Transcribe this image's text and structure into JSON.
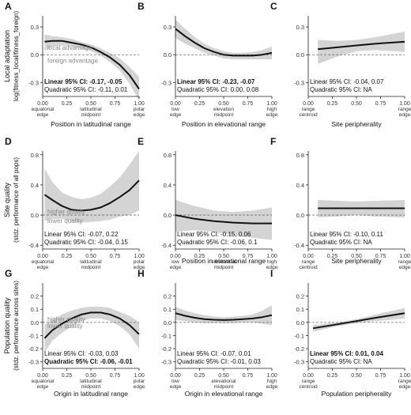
{
  "figure": {
    "row_ylabels": [
      [
        "Local adaptation",
        "log(fitness_local/fitness_foreign)"
      ],
      [
        "Site quality",
        "(stdz. performance of all pops)"
      ],
      [
        "Population quality",
        "(stdz. performance across sites)"
      ]
    ]
  },
  "chart_data": [
    {
      "panel": "A",
      "type": "line",
      "xlabel": "Position in latitudinal range",
      "xlim": [
        0,
        1
      ],
      "ylim": [
        -0.45,
        0.42
      ],
      "yticks": [
        "0.3",
        "0.0",
        "-0.3"
      ],
      "ytick_values": [
        0.3,
        0,
        -0.3
      ],
      "xticks": [
        "0.00\nequatorial\nedge",
        "0.25",
        "0.50\nlatitudinal\nmidpoint",
        "0.75",
        "1.00\npolar\nedge"
      ],
      "ref_labels": [
        {
          "text": "local advantage",
          "y": 0.08
        },
        {
          "text": "foreign advantage",
          "y": -0.06
        }
      ],
      "x": [
        0.02,
        0.1,
        0.2,
        0.3,
        0.4,
        0.5,
        0.6,
        0.7,
        0.8,
        0.9,
        1.0
      ],
      "y": [
        0.14,
        0.15,
        0.15,
        0.13,
        0.11,
        0.08,
        0.03,
        -0.03,
        -0.11,
        -0.22,
        -0.37
      ],
      "ci_upper": [
        0.22,
        0.2,
        0.19,
        0.17,
        0.14,
        0.11,
        0.07,
        0.02,
        -0.04,
        -0.13,
        -0.24
      ],
      "ci_lower": [
        0.04,
        0.09,
        0.1,
        0.09,
        0.07,
        0.04,
        -0.01,
        -0.08,
        -0.17,
        -0.31,
        -0.5
      ],
      "stats": [
        {
          "text": "Linear 95% CI: -0.17, -0.05",
          "bold": true
        },
        {
          "text": "Quadratic 95% CI: -0.11, 0.01",
          "bold": false
        }
      ]
    },
    {
      "panel": "B",
      "type": "line",
      "xlabel": "Position in elevational range",
      "xlim": [
        0,
        1
      ],
      "ylim": [
        -0.45,
        0.42
      ],
      "yticks": [
        "0.3",
        "0.0",
        "-0.3"
      ],
      "ytick_values": [
        0.3,
        0,
        -0.3
      ],
      "xticks": [
        "0.00\nlow\nedge",
        "0.25",
        "0.50\nelevation\nmidpoint",
        "0.75",
        "1.00\nhigh\nedge"
      ],
      "ref_labels": [],
      "x": [
        0.0,
        0.1,
        0.2,
        0.3,
        0.4,
        0.5,
        0.6,
        0.7,
        0.8,
        0.9,
        1.0
      ],
      "y": [
        0.28,
        0.2,
        0.13,
        0.07,
        0.03,
        0.0,
        -0.01,
        -0.01,
        -0.01,
        0.0,
        0.02
      ],
      "ci_upper": [
        0.38,
        0.28,
        0.19,
        0.12,
        0.07,
        0.04,
        0.02,
        0.02,
        0.03,
        0.05,
        0.09
      ],
      "ci_lower": [
        0.18,
        0.12,
        0.07,
        0.02,
        -0.01,
        -0.04,
        -0.05,
        -0.05,
        -0.05,
        -0.05,
        -0.05
      ],
      "stats": [
        {
          "text": "Linear 95% CI: -0.23, -0.07",
          "bold": true
        },
        {
          "text": "Quadratic 95% CI: 0.00, 0.08",
          "bold": false
        }
      ]
    },
    {
      "panel": "C",
      "type": "line",
      "xlabel": "Site peripherality",
      "xlim": [
        0,
        1
      ],
      "ylim": [
        -0.45,
        0.42
      ],
      "yticks": [
        "0.3",
        "0.0",
        "-0.3"
      ],
      "ytick_values": [
        0.3,
        0,
        -0.3
      ],
      "xticks": [
        "0.00\nrange\ncentroid",
        "0.25",
        "0.50",
        "0.75",
        "1.00\nrange\nedge"
      ],
      "ref_labels": [],
      "x": [
        0.1,
        0.3,
        0.5,
        0.7,
        1.0
      ],
      "y": [
        0.06,
        0.08,
        0.1,
        0.12,
        0.14
      ],
      "ci_upper": [
        0.16,
        0.15,
        0.16,
        0.19,
        0.25
      ],
      "ci_lower": [
        -0.1,
        -0.02,
        0.04,
        0.05,
        0.03
      ],
      "stats": [
        {
          "text": "Linear 95% CI: -0.04, 0.07",
          "bold": false
        },
        {
          "text": "Quadratic 95% CI: NA",
          "bold": false
        }
      ]
    },
    {
      "panel": "D",
      "type": "line",
      "xlabel": "",
      "xlim": [
        0,
        1
      ],
      "ylim": [
        -0.45,
        0.85
      ],
      "yticks": [
        "0.8",
        "0.4",
        "0.0",
        "-0.4"
      ],
      "ytick_values": [
        0.8,
        0.4,
        0,
        -0.4
      ],
      "xticks": [
        "0.00\nequatorial\nedge",
        "0.25",
        "0.50\nlatitudinal\nmidpoint",
        "0.75",
        "1.00\npolar\nedge"
      ],
      "ref_labels": [
        {
          "text": "higher quality",
          "y": 0.05
        },
        {
          "text": "lower quality",
          "y": -0.07
        }
      ],
      "x": [
        0.02,
        0.1,
        0.2,
        0.3,
        0.4,
        0.5,
        0.6,
        0.7,
        0.8,
        0.9,
        1.0
      ],
      "y": [
        0.27,
        0.2,
        0.12,
        0.07,
        0.06,
        0.07,
        0.1,
        0.16,
        0.24,
        0.33,
        0.46
      ],
      "ci_upper": [
        0.62,
        0.44,
        0.3,
        0.24,
        0.21,
        0.23,
        0.28,
        0.38,
        0.5,
        0.67,
        0.85
      ],
      "ci_lower": [
        -0.08,
        -0.05,
        -0.05,
        -0.08,
        -0.1,
        -0.09,
        -0.08,
        -0.06,
        -0.02,
        0.0,
        0.06
      ],
      "stats": [
        {
          "text": "Linear 95% CI: -0.07, 0.22",
          "bold": false
        },
        {
          "text": "Quadratic 95% CI: -0.04, 0.15",
          "bold": false
        }
      ]
    },
    {
      "panel": "E",
      "type": "line",
      "xlabel": "Position in elevational range",
      "xlim": [
        0,
        1
      ],
      "ylim": [
        -0.45,
        0.85
      ],
      "yticks": [
        "0.8",
        "0.4",
        "0.0",
        "-0.4"
      ],
      "ytick_values": [
        0.8,
        0.4,
        0,
        -0.4
      ],
      "xticks": [
        "0.00\nlow\nedge",
        "0.25",
        "0.50\nelevational\nmidpoint",
        "0.75",
        "1.00\nhigh\nedge"
      ],
      "ref_labels": [],
      "x": [
        0.0,
        0.2,
        0.4,
        0.6,
        0.8,
        1.0
      ],
      "y": [
        0.0,
        -0.05,
        -0.08,
        -0.1,
        -0.11,
        -0.11
      ],
      "ci_upper": [
        0.2,
        0.12,
        0.06,
        0.04,
        0.06,
        0.1
      ],
      "ci_lower": [
        -0.22,
        -0.2,
        -0.22,
        -0.27,
        -0.3,
        -0.33
      ],
      "stats": [
        {
          "text": "Linear 95% CI: -0.15, 0.06",
          "bold": false
        },
        {
          "text": "Quadratic 95% CI: -0.06, 0.1",
          "bold": false
        }
      ]
    },
    {
      "panel": "F",
      "type": "line",
      "xlabel": "Site peripherality",
      "xlim": [
        0,
        1
      ],
      "ylim": [
        -0.45,
        0.85
      ],
      "yticks": [
        "0.8",
        "0.4",
        "0.0",
        "-0.4"
      ],
      "ytick_values": [
        0.8,
        0.4,
        0,
        -0.4
      ],
      "xticks": [
        "0.00\nrange\ncentroid",
        "0.25",
        "0.50",
        "0.75",
        "1.00\nrange\nedge"
      ],
      "ref_labels": [],
      "x": [
        0.1,
        0.3,
        0.5,
        0.7,
        1.0
      ],
      "y": [
        0.09,
        0.09,
        0.09,
        0.09,
        0.09
      ],
      "ci_upper": [
        0.2,
        0.19,
        0.18,
        0.19,
        0.2
      ],
      "ci_lower": [
        -0.03,
        -0.02,
        0.0,
        -0.02,
        -0.03
      ],
      "stats": [
        {
          "text": "Linear 95% CI: -0.10, 0.11",
          "bold": false
        },
        {
          "text": "Quadratic 95% CI: NA",
          "bold": false
        }
      ]
    },
    {
      "panel": "G",
      "type": "line",
      "xlabel": "Origin in latitudinal range",
      "xlim": [
        0,
        1
      ],
      "ylim": [
        -0.35,
        0.3
      ],
      "yticks": [
        "0.2",
        "0.1",
        "0.0",
        "-0.1",
        "-0.2",
        "-0.3"
      ],
      "ytick_values": [
        0.2,
        0.1,
        0,
        -0.1,
        -0.2,
        -0.3
      ],
      "xticks": [
        "0.00\nequatorial\nedge",
        "0.25",
        "0.50\nlatitudinal\nmidpoint",
        "0.75",
        "1.00\npolar\nedge"
      ],
      "ref_labels": [
        {
          "text": "higher quality",
          "y": 0.025
        },
        {
          "text": "lower quality",
          "y": -0.025
        }
      ],
      "x": [
        0.02,
        0.1,
        0.2,
        0.3,
        0.4,
        0.5,
        0.6,
        0.7,
        0.8,
        0.9,
        1.0
      ],
      "y": [
        -0.12,
        -0.06,
        -0.01,
        0.03,
        0.06,
        0.075,
        0.075,
        0.06,
        0.03,
        -0.02,
        -0.09
      ],
      "ci_upper": [
        -0.02,
        0.02,
        0.06,
        0.09,
        0.11,
        0.12,
        0.12,
        0.11,
        0.08,
        0.05,
        0.0
      ],
      "ci_lower": [
        -0.23,
        -0.14,
        -0.08,
        -0.03,
        0.01,
        0.03,
        0.03,
        0.01,
        -0.03,
        -0.09,
        -0.2
      ],
      "stats": [
        {
          "text": "Linear 95% CI: -0.03, 0.03",
          "bold": false
        },
        {
          "text": "Quadratic 95% CI: -0.06, -0.01",
          "bold": true
        }
      ]
    },
    {
      "panel": "H",
      "type": "line",
      "xlabel": "Origin in elevational range",
      "xlim": [
        0,
        1
      ],
      "ylim": [
        -0.35,
        0.3
      ],
      "yticks": [
        "0.2",
        "0.1",
        "0.0",
        "-0.1",
        "-0.2",
        "-0.3"
      ],
      "ytick_values": [
        0.2,
        0.1,
        0,
        -0.1,
        -0.2,
        -0.3
      ],
      "xticks": [
        "0.00\nlow\nedge",
        "0.25",
        "0.50\nelevational\nmidpoint",
        "0.75",
        "1.00\nhigh\nedge"
      ],
      "ref_labels": [],
      "x": [
        0.0,
        0.1,
        0.2,
        0.3,
        0.4,
        0.5,
        0.6,
        0.7,
        0.8,
        0.9,
        1.0
      ],
      "y": [
        0.07,
        0.05,
        0.035,
        0.025,
        0.02,
        0.018,
        0.02,
        0.025,
        0.03,
        0.04,
        0.055
      ],
      "ci_upper": [
        0.12,
        0.09,
        0.07,
        0.055,
        0.045,
        0.04,
        0.045,
        0.05,
        0.06,
        0.09,
        0.13
      ],
      "ci_lower": [
        0.02,
        0.01,
        0.0,
        -0.005,
        -0.005,
        -0.005,
        -0.005,
        0.0,
        0.0,
        -0.01,
        -0.02
      ],
      "stats": [
        {
          "text": "Linear 95% CI: -0.07, 0.01",
          "bold": false
        },
        {
          "text": "Quadratic 95% CI: -0.01, 0.03",
          "bold": false
        }
      ]
    },
    {
      "panel": "I",
      "type": "line",
      "xlabel": "Population peripherality",
      "xlim": [
        0,
        1
      ],
      "ylim": [
        -0.35,
        0.3
      ],
      "yticks": [
        "0.2",
        "0.1",
        "0.0",
        "-0.1",
        "-0.2",
        "-0.3"
      ],
      "ytick_values": [
        0.2,
        0.1,
        0,
        -0.1,
        -0.2,
        -0.3
      ],
      "xticks": [
        "0.00\nrange\ncentroid",
        "0.25",
        "0.50",
        "0.75",
        "1.00\nrange\nedge"
      ],
      "ref_labels": [],
      "x": [
        0.05,
        0.3,
        0.5,
        0.7,
        1.0
      ],
      "y": [
        -0.045,
        -0.015,
        0.01,
        0.035,
        0.07
      ],
      "ci_upper": [
        -0.02,
        0.0,
        0.025,
        0.06,
        0.11
      ],
      "ci_lower": [
        -0.07,
        -0.03,
        -0.005,
        0.01,
        0.03
      ],
      "stats": [
        {
          "text": "Linear 95% CI: 0.01, 0.04",
          "bold": true
        },
        {
          "text": "Quadratic 95% CI: NA",
          "bold": false
        }
      ]
    }
  ]
}
